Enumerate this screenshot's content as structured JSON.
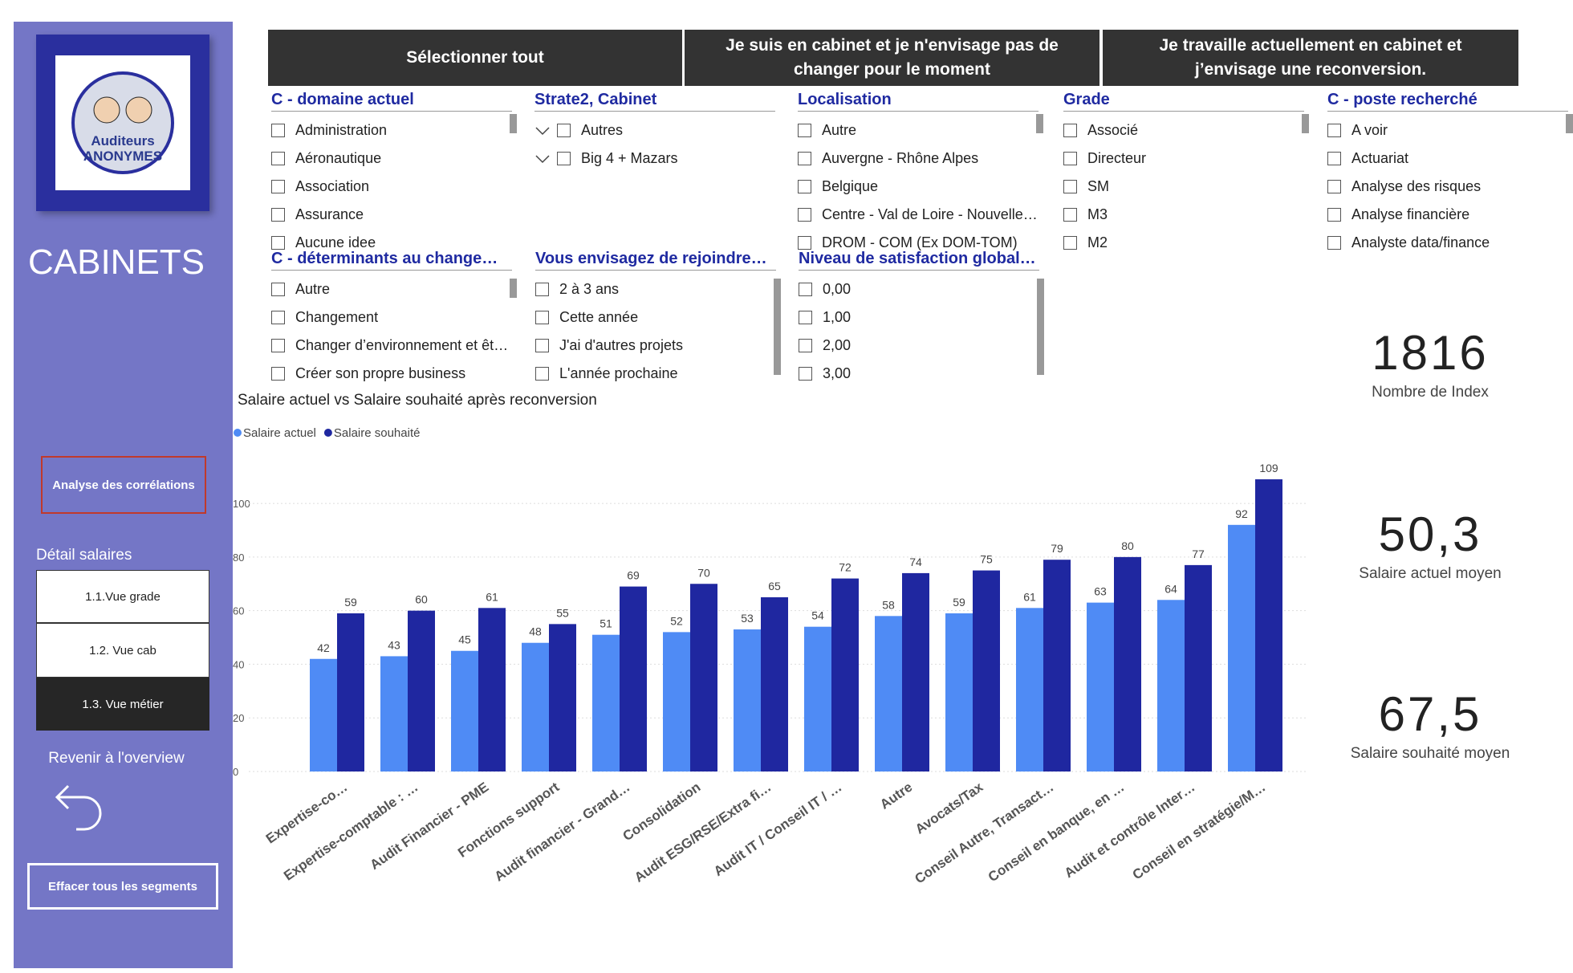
{
  "sidebar": {
    "heading": "CABINETS",
    "logo_text": [
      "Auditeurs",
      "ANONYMES"
    ],
    "correlation_button": "Analyse des corrélations",
    "detail_heading": "Détail salaires",
    "detail_buttons": [
      "1.1.Vue grade",
      "1.2. Vue cab",
      "1.3. Vue métier"
    ],
    "back_label": "Revenir à l'overview",
    "clear_button": "Effacer tous les segments"
  },
  "top_buttons": [
    "Sélectionner tout",
    "Je suis en cabinet et je n'envisage pas de changer pour le moment",
    "Je travaille actuellement en cabinet et j’envisage une reconversion."
  ],
  "slicers": [
    {
      "title": "C - domaine actuel",
      "items": [
        "Administration",
        "Aéronautique",
        "Association",
        "Assurance",
        "Aucune idee"
      ]
    },
    {
      "title": "Strate2, Cabinet",
      "items": [
        "Autres",
        "Big 4 + Mazars"
      ]
    },
    {
      "title": "Localisation",
      "items": [
        "Autre",
        "Auvergne - Rhône Alpes",
        "Belgique",
        "Centre - Val de Loire - Nouvelle…",
        "DROM - COM (Ex DOM-TOM)"
      ]
    },
    {
      "title": "Grade",
      "items": [
        "Associé",
        "Directeur",
        "SM",
        "M3",
        "M2"
      ]
    },
    {
      "title": "C - poste recherché",
      "items": [
        "A voir",
        "Actuariat",
        "Analyse des risques",
        "Analyse financière",
        "Analyste data/finance"
      ]
    },
    {
      "title": "C - déterminants au change…",
      "items": [
        "Autre",
        "Changement",
        "Changer d’environnement et êt…",
        "Créer son propre business"
      ]
    },
    {
      "title": "Vous envisagez de rejoindre…",
      "items": [
        "2 à 3 ans",
        "Cette année",
        "J'ai d'autres projets",
        "L'année prochaine"
      ]
    },
    {
      "title": "Niveau de satisfaction global…",
      "items": [
        "0,00",
        "1,00",
        "2,00",
        "3,00"
      ]
    }
  ],
  "kpis": [
    {
      "value": "1816",
      "label": "Nombre de Index"
    },
    {
      "value": "50,3",
      "label": "Salaire actuel moyen"
    },
    {
      "value": "67,5",
      "label": "Salaire souhaité moyen"
    }
  ],
  "chart_data": {
    "type": "bar",
    "title": "Salaire actuel vs Salaire souhaité après reconversion",
    "categories": [
      "Expertise-co…",
      "Expertise-comptable : …",
      "Audit Financier - PME",
      "Fonctions support",
      "Audit financier - Grand…",
      "Consolidation",
      "Audit ESG/RSE/Extra fi…",
      "Audit IT / Conseil IT / …",
      "Autre",
      "Avocats/Tax",
      "Conseil Autre, Transact…",
      "Conseil en banque, en …",
      "Audit et contrôle Inter…",
      "Conseil en stratégie/M…"
    ],
    "series": [
      {
        "name": "Salaire actuel",
        "color": "#4f8bf5",
        "values": [
          42,
          43,
          45,
          48,
          51,
          52,
          53,
          54,
          58,
          59,
          61,
          63,
          64,
          92
        ]
      },
      {
        "name": "Salaire souhaité",
        "color": "#1f27a0",
        "values": [
          59,
          60,
          61,
          55,
          69,
          70,
          65,
          72,
          74,
          75,
          79,
          80,
          77,
          109
        ]
      }
    ],
    "ylim": [
      0,
      115
    ],
    "yticks": [
      0,
      20,
      40,
      60,
      80,
      100
    ],
    "grid": true,
    "legend": "top-left"
  }
}
